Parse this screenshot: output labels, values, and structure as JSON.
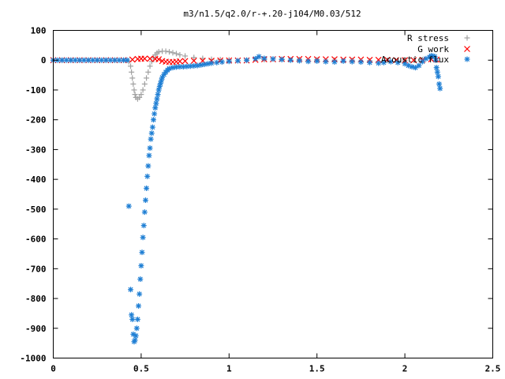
{
  "chart_data": {
    "type": "scatter",
    "title": "m3/n1.5/q2.0/r-+.20-j104/M0.03/512",
    "xlabel": "",
    "ylabel": "",
    "xlim": [
      0,
      2.5
    ],
    "ylim": [
      -1000,
      100
    ],
    "x_ticks": [
      "0",
      "0.5",
      "1",
      "1.5",
      "2",
      "2.5"
    ],
    "y_ticks": [
      "100",
      "0",
      "-100",
      "-200",
      "-300",
      "-400",
      "-500",
      "-600",
      "-700",
      "-800",
      "-900",
      "-1000"
    ],
    "grid": false,
    "legend_position": "top-right",
    "series": [
      {
        "name": "R stress",
        "marker": "plus",
        "color": "#a0a0a0",
        "points": [
          [
            0,
            0
          ],
          [
            0.05,
            0
          ],
          [
            0.1,
            0
          ],
          [
            0.15,
            0
          ],
          [
            0.2,
            0
          ],
          [
            0.25,
            0
          ],
          [
            0.3,
            0
          ],
          [
            0.35,
            0
          ],
          [
            0.4,
            0
          ],
          [
            0.43,
            -5
          ],
          [
            0.44,
            -20
          ],
          [
            0.445,
            -40
          ],
          [
            0.45,
            -60
          ],
          [
            0.455,
            -80
          ],
          [
            0.46,
            -100
          ],
          [
            0.465,
            -115
          ],
          [
            0.47,
            -125
          ],
          [
            0.48,
            -130
          ],
          [
            0.49,
            -125
          ],
          [
            0.5,
            -115
          ],
          [
            0.51,
            -100
          ],
          [
            0.52,
            -80
          ],
          [
            0.53,
            -60
          ],
          [
            0.54,
            -40
          ],
          [
            0.55,
            -20
          ],
          [
            0.56,
            -5
          ],
          [
            0.57,
            8
          ],
          [
            0.58,
            18
          ],
          [
            0.59,
            24
          ],
          [
            0.6,
            28
          ],
          [
            0.62,
            30
          ],
          [
            0.64,
            30
          ],
          [
            0.66,
            28
          ],
          [
            0.68,
            25
          ],
          [
            0.7,
            22
          ],
          [
            0.72,
            18
          ],
          [
            0.75,
            14
          ],
          [
            0.8,
            9
          ],
          [
            0.85,
            6
          ],
          [
            0.9,
            3
          ],
          [
            0.95,
            2
          ],
          [
            1.0,
            1
          ],
          [
            1.1,
            0
          ],
          [
            1.2,
            2
          ],
          [
            1.3,
            3
          ],
          [
            1.4,
            2
          ],
          [
            1.5,
            1
          ],
          [
            1.6,
            0
          ],
          [
            1.7,
            -1
          ],
          [
            1.8,
            -2
          ],
          [
            1.9,
            -1
          ],
          [
            2.0,
            0
          ],
          [
            2.1,
            2
          ],
          [
            2.15,
            10
          ],
          [
            2.18,
            5
          ]
        ]
      },
      {
        "name": "G work",
        "marker": "cross",
        "color": "#ff0000",
        "points": [
          [
            0,
            0
          ],
          [
            0.05,
            0
          ],
          [
            0.1,
            0
          ],
          [
            0.15,
            0
          ],
          [
            0.2,
            0
          ],
          [
            0.25,
            0
          ],
          [
            0.3,
            0
          ],
          [
            0.35,
            0
          ],
          [
            0.4,
            0
          ],
          [
            0.45,
            2
          ],
          [
            0.48,
            4
          ],
          [
            0.5,
            5
          ],
          [
            0.52,
            5
          ],
          [
            0.55,
            5
          ],
          [
            0.58,
            4
          ],
          [
            0.6,
            3
          ],
          [
            0.62,
            -3
          ],
          [
            0.64,
            -5
          ],
          [
            0.66,
            -6
          ],
          [
            0.68,
            -6
          ],
          [
            0.7,
            -5
          ],
          [
            0.72,
            -4
          ],
          [
            0.75,
            -3
          ],
          [
            0.8,
            -2
          ],
          [
            0.85,
            -2
          ],
          [
            0.9,
            -2
          ],
          [
            0.95,
            -1
          ],
          [
            1.0,
            -1
          ],
          [
            1.05,
            -1
          ],
          [
            1.1,
            -1
          ],
          [
            1.15,
            1
          ],
          [
            1.2,
            3
          ],
          [
            1.25,
            3
          ],
          [
            1.3,
            4
          ],
          [
            1.35,
            4
          ],
          [
            1.4,
            4
          ],
          [
            1.45,
            4
          ],
          [
            1.5,
            3
          ],
          [
            1.55,
            3
          ],
          [
            1.6,
            3
          ],
          [
            1.65,
            2
          ],
          [
            1.7,
            2
          ],
          [
            1.75,
            2
          ],
          [
            1.8,
            1
          ],
          [
            1.85,
            1
          ],
          [
            1.9,
            1
          ],
          [
            1.95,
            0
          ],
          [
            2.0,
            0
          ],
          [
            2.05,
            0
          ],
          [
            2.1,
            1
          ],
          [
            2.15,
            3
          ],
          [
            2.18,
            2
          ]
        ]
      },
      {
        "name": "Acoustic flux",
        "marker": "star",
        "color": "#1f7fd4",
        "points": [
          [
            0,
            0
          ],
          [
            0.025,
            0
          ],
          [
            0.05,
            0
          ],
          [
            0.075,
            0
          ],
          [
            0.1,
            0
          ],
          [
            0.125,
            0
          ],
          [
            0.15,
            0
          ],
          [
            0.175,
            0
          ],
          [
            0.2,
            0
          ],
          [
            0.225,
            0
          ],
          [
            0.25,
            0
          ],
          [
            0.275,
            0
          ],
          [
            0.3,
            0
          ],
          [
            0.325,
            0
          ],
          [
            0.35,
            0
          ],
          [
            0.375,
            0
          ],
          [
            0.4,
            0
          ],
          [
            0.42,
            0
          ],
          [
            0.43,
            -490
          ],
          [
            0.44,
            -770
          ],
          [
            0.445,
            -855
          ],
          [
            0.45,
            -870
          ],
          [
            0.455,
            -920
          ],
          [
            0.46,
            -945
          ],
          [
            0.465,
            -940
          ],
          [
            0.47,
            -925
          ],
          [
            0.475,
            -900
          ],
          [
            0.48,
            -870
          ],
          [
            0.485,
            -825
          ],
          [
            0.49,
            -785
          ],
          [
            0.495,
            -735
          ],
          [
            0.5,
            -690
          ],
          [
            0.505,
            -645
          ],
          [
            0.51,
            -595
          ],
          [
            0.515,
            -555
          ],
          [
            0.52,
            -510
          ],
          [
            0.525,
            -470
          ],
          [
            0.53,
            -430
          ],
          [
            0.535,
            -390
          ],
          [
            0.54,
            -355
          ],
          [
            0.545,
            -320
          ],
          [
            0.55,
            -295
          ],
          [
            0.555,
            -265
          ],
          [
            0.56,
            -245
          ],
          [
            0.565,
            -225
          ],
          [
            0.57,
            -200
          ],
          [
            0.575,
            -180
          ],
          [
            0.58,
            -160
          ],
          [
            0.585,
            -145
          ],
          [
            0.59,
            -130
          ],
          [
            0.595,
            -115
          ],
          [
            0.6,
            -100
          ],
          [
            0.605,
            -88
          ],
          [
            0.61,
            -78
          ],
          [
            0.615,
            -68
          ],
          [
            0.62,
            -58
          ],
          [
            0.63,
            -48
          ],
          [
            0.64,
            -40
          ],
          [
            0.65,
            -33
          ],
          [
            0.66,
            -28
          ],
          [
            0.68,
            -25
          ],
          [
            0.7,
            -23
          ],
          [
            0.72,
            -22
          ],
          [
            0.74,
            -22
          ],
          [
            0.76,
            -21
          ],
          [
            0.78,
            -20
          ],
          [
            0.8,
            -19
          ],
          [
            0.82,
            -18
          ],
          [
            0.84,
            -16
          ],
          [
            0.86,
            -14
          ],
          [
            0.88,
            -12
          ],
          [
            0.9,
            -10
          ],
          [
            0.93,
            -8
          ],
          [
            0.96,
            -6
          ],
          [
            1.0,
            -4
          ],
          [
            1.05,
            -2
          ],
          [
            1.1,
            0
          ],
          [
            1.15,
            5
          ],
          [
            1.17,
            12
          ],
          [
            1.2,
            6
          ],
          [
            1.25,
            4
          ],
          [
            1.3,
            2
          ],
          [
            1.35,
            0
          ],
          [
            1.4,
            -2
          ],
          [
            1.45,
            -4
          ],
          [
            1.5,
            -3
          ],
          [
            1.55,
            -5
          ],
          [
            1.6,
            -6
          ],
          [
            1.65,
            -3
          ],
          [
            1.7,
            -5
          ],
          [
            1.75,
            -6
          ],
          [
            1.8,
            -8
          ],
          [
            1.85,
            -10
          ],
          [
            1.88,
            -8
          ],
          [
            1.92,
            -5
          ],
          [
            1.96,
            -8
          ],
          [
            2.0,
            -12
          ],
          [
            2.02,
            -18
          ],
          [
            2.04,
            -22
          ],
          [
            2.06,
            -25
          ],
          [
            2.08,
            -18
          ],
          [
            2.1,
            -5
          ],
          [
            2.12,
            5
          ],
          [
            2.14,
            10
          ],
          [
            2.15,
            15
          ],
          [
            2.16,
            14
          ],
          [
            2.17,
            12
          ],
          [
            2.175,
            0
          ],
          [
            2.18,
            -25
          ],
          [
            2.185,
            -40
          ],
          [
            2.19,
            -55
          ],
          [
            2.195,
            -80
          ],
          [
            2.2,
            -95
          ]
        ]
      }
    ]
  }
}
